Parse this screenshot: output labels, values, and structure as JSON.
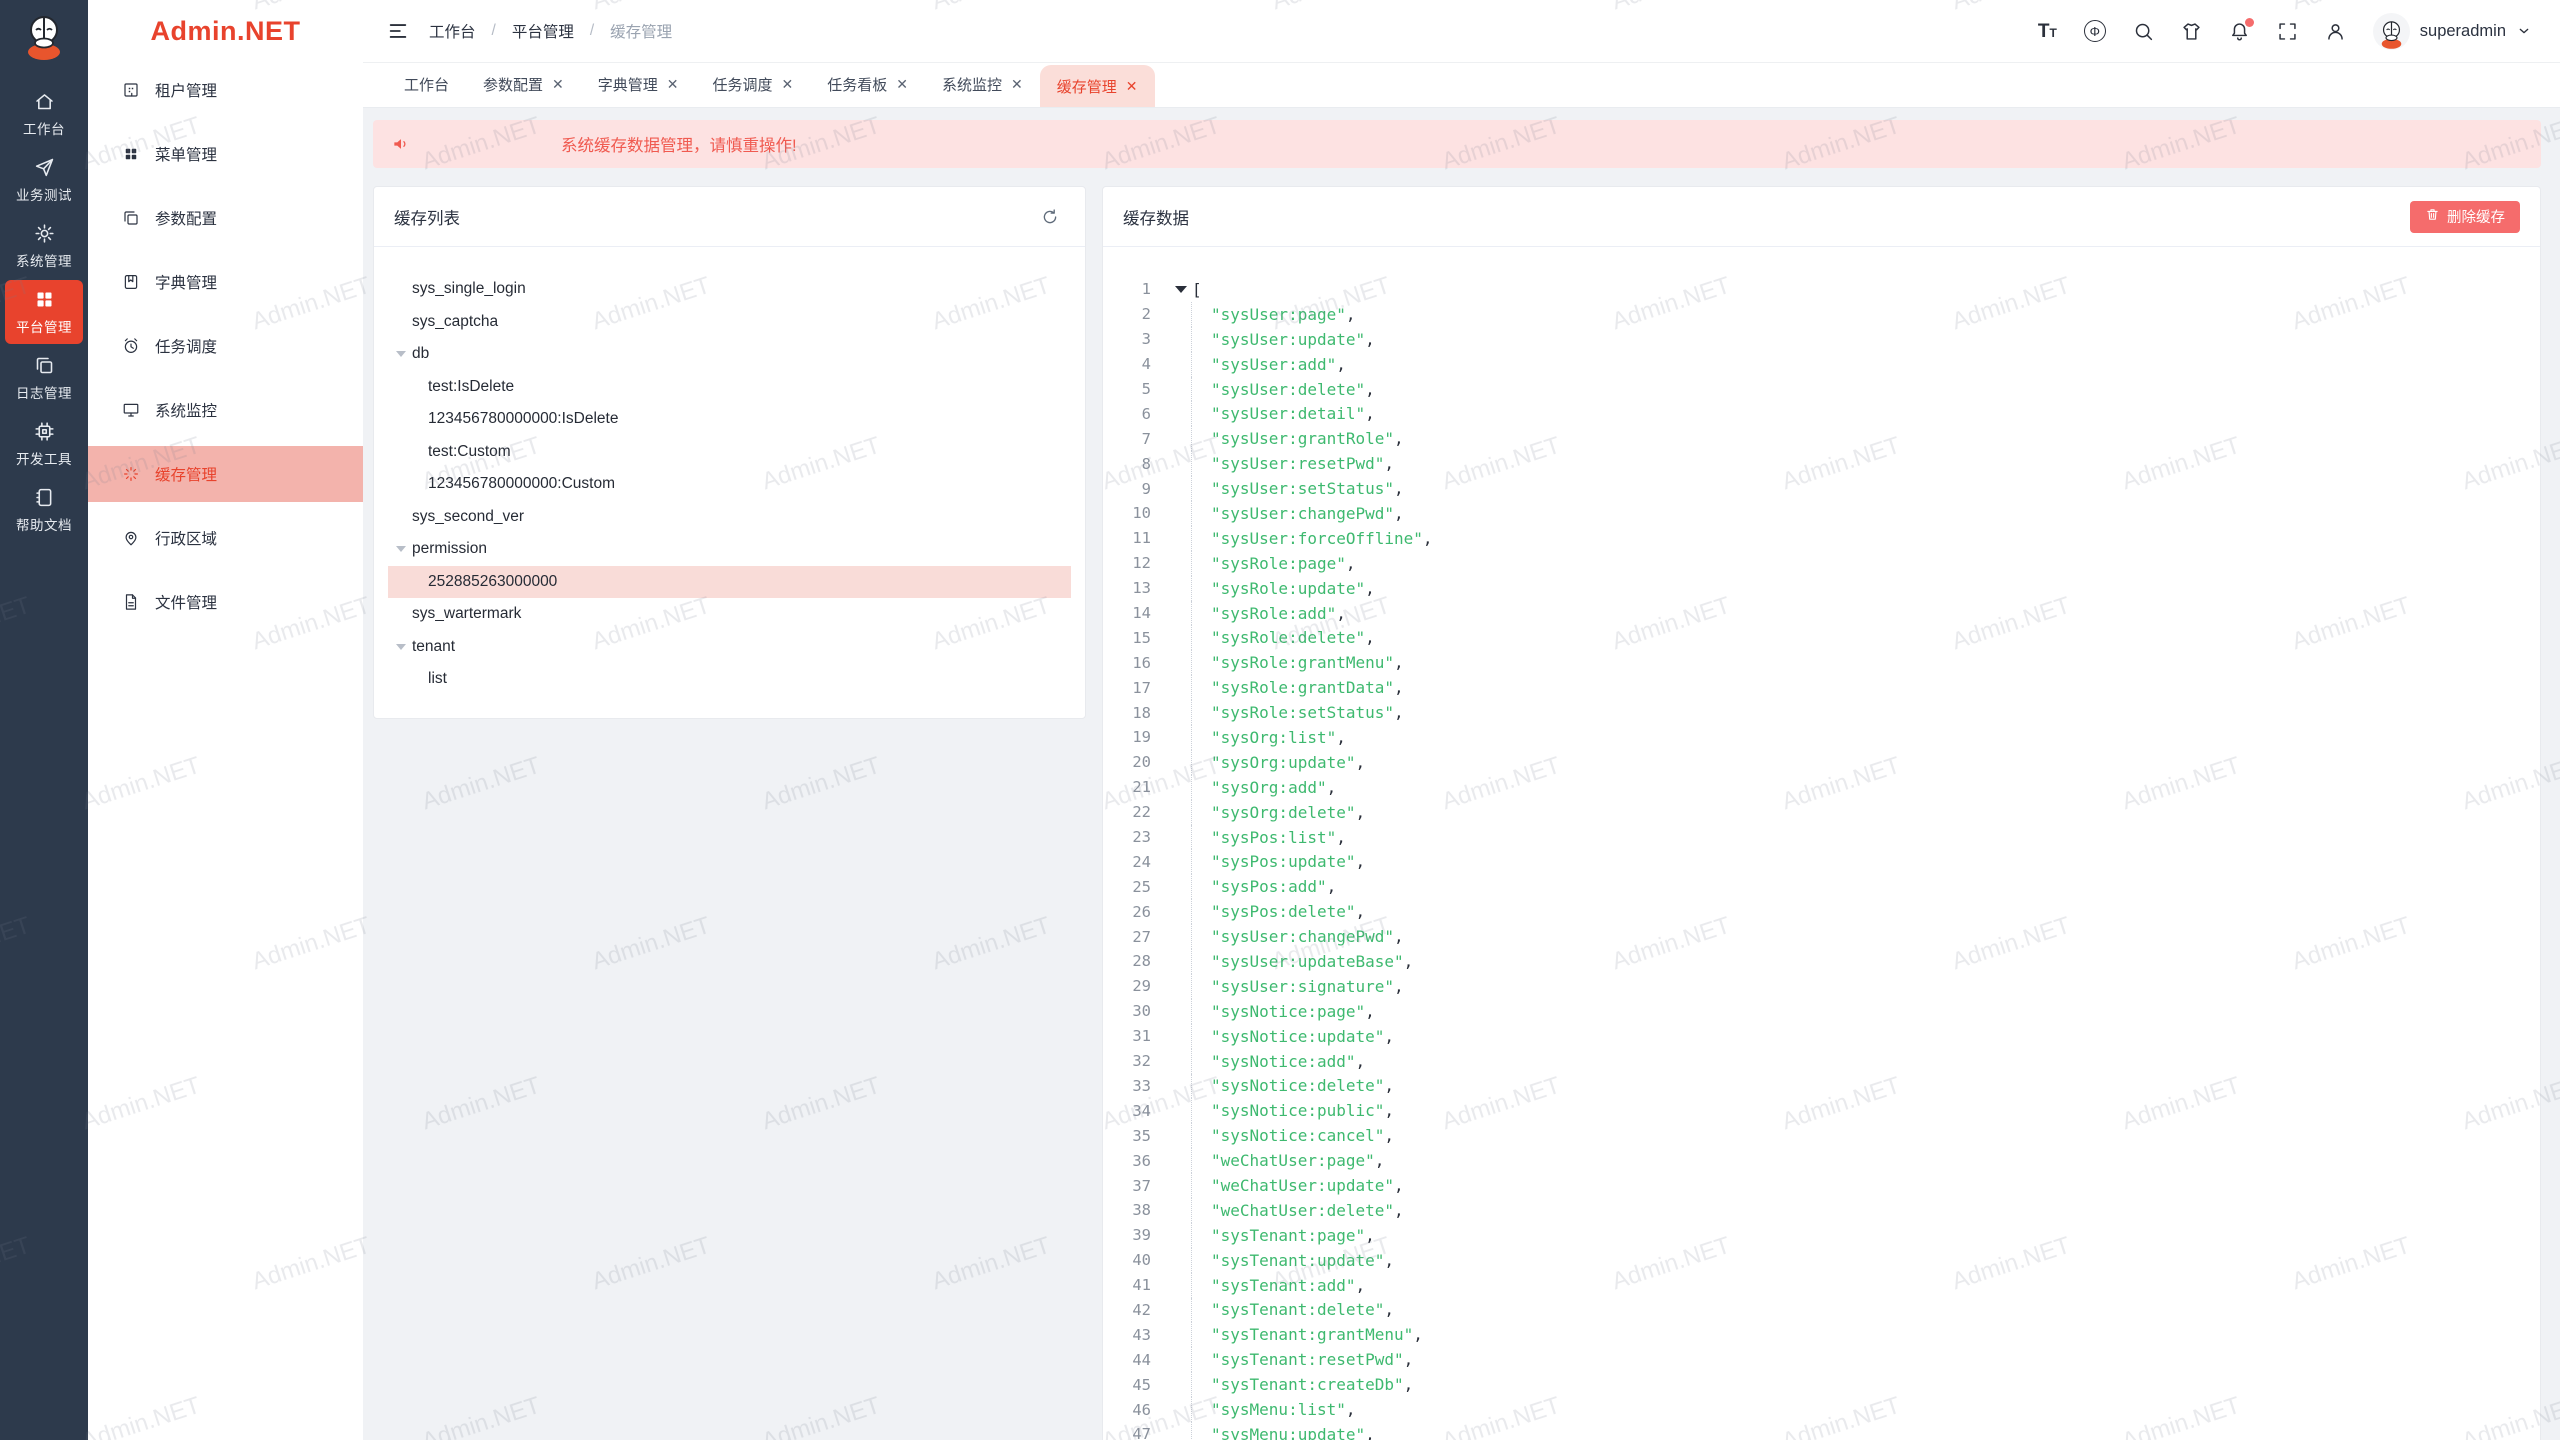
{
  "app": {
    "logo_text": "Admin.NET"
  },
  "colors": {
    "primary": "#e8432d",
    "danger": "#f56c6c",
    "menu_active_bg": "#f3b3ac",
    "tab_active_bg": "#fbded9",
    "alert_bg": "#fde2e2",
    "json_string": "#3eb96f",
    "rail_bg": "#2d3a4c"
  },
  "watermark": {
    "text": "Admin.NET"
  },
  "nav_rail": {
    "items": [
      {
        "label": "工作台",
        "icon": "home-icon",
        "active": false
      },
      {
        "label": "业务测试",
        "icon": "send-icon",
        "active": false
      },
      {
        "label": "系统管理",
        "icon": "gear-icon",
        "active": false
      },
      {
        "label": "平台管理",
        "icon": "grid-icon",
        "active": true
      },
      {
        "label": "日志管理",
        "icon": "copy-icon",
        "active": false
      },
      {
        "label": "开发工具",
        "icon": "cpu-icon",
        "active": false
      },
      {
        "label": "帮助文档",
        "icon": "notebook-icon",
        "active": false
      }
    ]
  },
  "submenu": {
    "logo_text": "Admin.NET",
    "items": [
      {
        "label": "租户管理",
        "icon": "tenant-icon",
        "active": false
      },
      {
        "label": "菜单管理",
        "icon": "menu-grid-icon",
        "active": false
      },
      {
        "label": "参数配置",
        "icon": "config-icon",
        "active": false
      },
      {
        "label": "字典管理",
        "icon": "dict-icon",
        "active": false
      },
      {
        "label": "任务调度",
        "icon": "clock-icon",
        "active": false
      },
      {
        "label": "系统监控",
        "icon": "monitor-icon",
        "active": false
      },
      {
        "label": "缓存管理",
        "icon": "cache-icon",
        "active": true
      },
      {
        "label": "行政区域",
        "icon": "pin-icon",
        "active": false
      },
      {
        "label": "文件管理",
        "icon": "file-icon",
        "active": false
      }
    ]
  },
  "header": {
    "breadcrumb": [
      "工作台",
      "平台管理",
      "缓存管理"
    ],
    "separator": "/",
    "icons": [
      "font-size-icon",
      "language-icon",
      "search-icon",
      "theme-icon",
      "notification-icon",
      "fullscreen-icon",
      "user-icon"
    ],
    "notification_badge": true,
    "username": "superadmin"
  },
  "tabs": [
    {
      "label": "工作台",
      "closable": false,
      "active": false
    },
    {
      "label": "参数配置",
      "closable": true,
      "active": false
    },
    {
      "label": "字典管理",
      "closable": true,
      "active": false
    },
    {
      "label": "任务调度",
      "closable": true,
      "active": false
    },
    {
      "label": "任务看板",
      "closable": true,
      "active": false
    },
    {
      "label": "系统监控",
      "closable": true,
      "active": false
    },
    {
      "label": "缓存管理",
      "closable": true,
      "active": true
    }
  ],
  "alert": {
    "text": "系统缓存数据管理，请慎重操作!",
    "icon": "speaker-icon"
  },
  "cache_list": {
    "title": "缓存列表",
    "refresh_icon": "refresh-icon",
    "tree": [
      {
        "label": "sys_single_login",
        "level": 0,
        "expandable": false,
        "selected": false
      },
      {
        "label": "sys_captcha",
        "level": 0,
        "expandable": false,
        "selected": false
      },
      {
        "label": "db",
        "level": 0,
        "expandable": true,
        "selected": false
      },
      {
        "label": "test:IsDelete",
        "level": 1,
        "expandable": false,
        "selected": false
      },
      {
        "label": "123456780000000:IsDelete",
        "level": 1,
        "expandable": false,
        "selected": false
      },
      {
        "label": "test:Custom",
        "level": 1,
        "expandable": false,
        "selected": false
      },
      {
        "label": "123456780000000:Custom",
        "level": 1,
        "expandable": false,
        "selected": false
      },
      {
        "label": "sys_second_ver",
        "level": 0,
        "expandable": false,
        "selected": false
      },
      {
        "label": "permission",
        "level": 0,
        "expandable": true,
        "selected": false
      },
      {
        "label": "252885263000000",
        "level": 1,
        "expandable": false,
        "selected": true
      },
      {
        "label": "sys_wartermark",
        "level": 0,
        "expandable": false,
        "selected": false
      },
      {
        "label": "tenant",
        "level": 0,
        "expandable": true,
        "selected": false
      },
      {
        "label": "list",
        "level": 1,
        "expandable": false,
        "selected": false
      }
    ]
  },
  "cache_data": {
    "title": "缓存数据",
    "delete_button": {
      "label": "删除缓存",
      "icon": "trash-icon"
    },
    "viewer": {
      "start_line": 1,
      "open_bracket": "[",
      "items": [
        "sysUser:page",
        "sysUser:update",
        "sysUser:add",
        "sysUser:delete",
        "sysUser:detail",
        "sysUser:grantRole",
        "sysUser:resetPwd",
        "sysUser:setStatus",
        "sysUser:changePwd",
        "sysUser:forceOffline",
        "sysRole:page",
        "sysRole:update",
        "sysRole:add",
        "sysRole:delete",
        "sysRole:grantMenu",
        "sysRole:grantData",
        "sysRole:setStatus",
        "sysOrg:list",
        "sysOrg:update",
        "sysOrg:add",
        "sysOrg:delete",
        "sysPos:list",
        "sysPos:update",
        "sysPos:add",
        "sysPos:delete",
        "sysUser:changePwd",
        "sysUser:updateBase",
        "sysUser:signature",
        "sysNotice:page",
        "sysNotice:update",
        "sysNotice:add",
        "sysNotice:delete",
        "sysNotice:public",
        "sysNotice:cancel",
        "weChatUser:page",
        "weChatUser:update",
        "weChatUser:delete",
        "sysTenant:page",
        "sysTenant:update",
        "sysTenant:add",
        "sysTenant:delete",
        "sysTenant:grantMenu",
        "sysTenant:resetPwd",
        "sysTenant:createDb",
        "sysMenu:list",
        "sysMenu:update"
      ]
    }
  }
}
